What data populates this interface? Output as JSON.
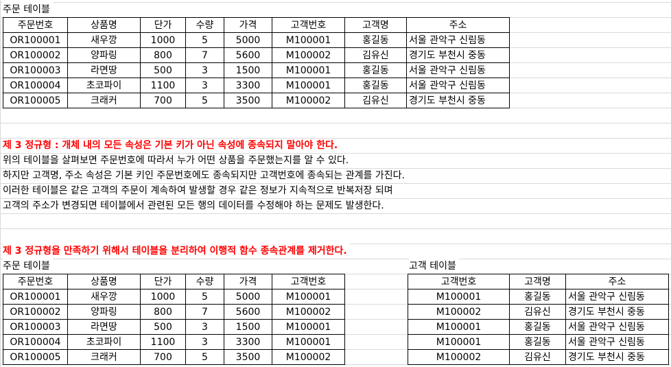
{
  "top_table": {
    "title": "주문 테이블",
    "headers": [
      "주문번호",
      "상품명",
      "단가",
      "수량",
      "가격",
      "고객번호",
      "고객명",
      "주소"
    ],
    "rows": [
      [
        "OR100001",
        "새우깡",
        "1000",
        "5",
        "5000",
        "M100001",
        "홍길동",
        "서울 관악구 신림동"
      ],
      [
        "OR100002",
        "양파링",
        "800",
        "7",
        "5600",
        "M100002",
        "김유신",
        "경기도 부천시 중동"
      ],
      [
        "OR100003",
        "라면땅",
        "500",
        "3",
        "1500",
        "M100001",
        "홍길동",
        "서울 관악구 신림동"
      ],
      [
        "OR100004",
        "초코파이",
        "1100",
        "3",
        "3300",
        "M100001",
        "홍길동",
        "서울 관악구 신림동"
      ],
      [
        "OR100005",
        "크래커",
        "700",
        "5",
        "3500",
        "M100002",
        "김유신",
        "경기도 부천시 중동"
      ]
    ]
  },
  "notes": {
    "heading": "제 3 정규형 : 개체 내의 모든 속성은 기본 키가 아닌 속성에 종속되지 말아야 한다.",
    "lines": [
      "위의 테이블을 살펴보면 주문번호에 따라서 누가 어떤 상품을 주문했는지를 알 수 있다.",
      "하지만 고객명, 주소 속성은 기본 키인 주문번호에도 종속되지만 고객번호에 종속되는 관계를 가진다.",
      "이러한 테이블은 같은 고객의 주문이 계속하여 발생할 경우 같은 정보가 지속적으로 반복저장 되며",
      "고객의 주소가 변경되면 테이블에서 관련된 모든 행의 데이터를 수정해야 하는 문제도 발생한다."
    ]
  },
  "solution_heading": "제 3 정규형을 만족하기 위해서 테이블을 분리하여 이행적 함수 종속관계를 제거한다.",
  "order_table": {
    "title": "주문 테이블",
    "headers": [
      "주문번호",
      "상품명",
      "단가",
      "수량",
      "가격",
      "고객번호"
    ],
    "rows": [
      [
        "OR100001",
        "새우깡",
        "1000",
        "5",
        "5000",
        "M100001"
      ],
      [
        "OR100002",
        "양파링",
        "800",
        "7",
        "5600",
        "M100002"
      ],
      [
        "OR100003",
        "라면땅",
        "500",
        "3",
        "1500",
        "M100001"
      ],
      [
        "OR100004",
        "초코파이",
        "1100",
        "3",
        "3300",
        "M100001"
      ],
      [
        "OR100005",
        "크래커",
        "700",
        "5",
        "3500",
        "M100002"
      ]
    ]
  },
  "customer_table": {
    "title": "고객 테이블",
    "headers": [
      "고객번호",
      "고객명",
      "주소"
    ],
    "rows": [
      [
        "M100001",
        "홍길동",
        "서울 관악구 신림동"
      ],
      [
        "M100002",
        "김유신",
        "경기도 부천시 중동"
      ],
      [
        "M100001",
        "홍길동",
        "서울 관악구 신림동"
      ],
      [
        "M100001",
        "홍길동",
        "서울 관악구 신림동"
      ],
      [
        "M100002",
        "김유신",
        "경기도 부천시 중동"
      ]
    ]
  },
  "colors": {
    "emphasis": "#ff0000",
    "gridline": "#d9d9d9",
    "border": "#000000"
  }
}
